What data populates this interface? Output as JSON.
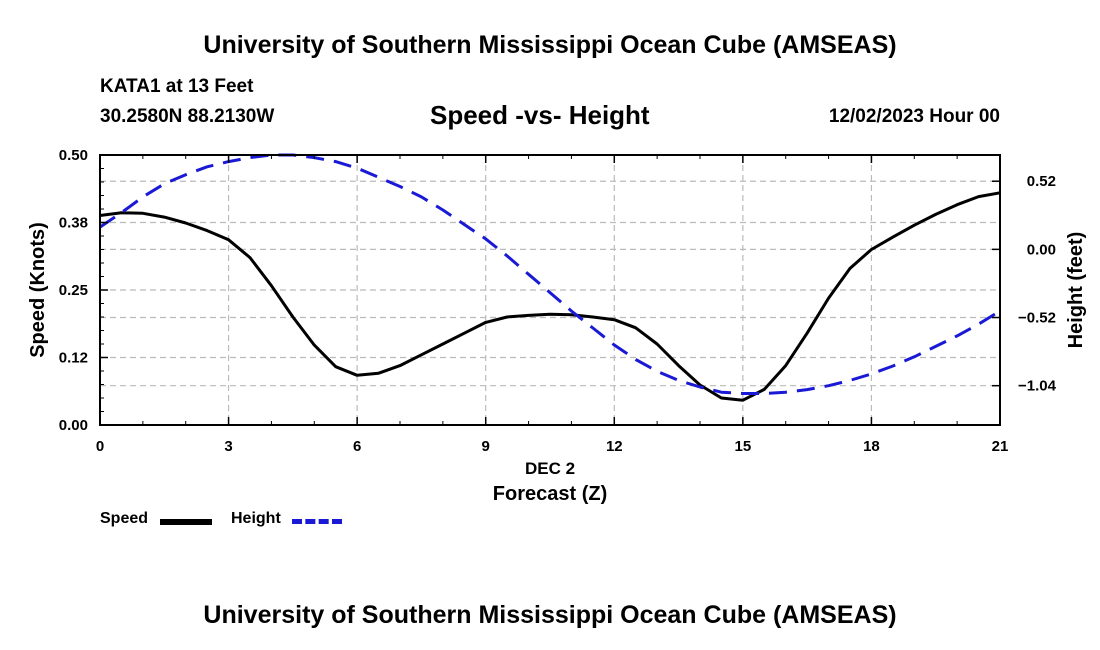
{
  "header": {
    "title": "University of Southern Mississippi Ocean Cube (AMSEAS)",
    "footer_title": "University of Southern Mississippi Ocean Cube (AMSEAS)",
    "station": "KATA1 at 13 Feet",
    "coords": "30.2580N  88.2130W",
    "datetime": "12/02/2023 Hour 00"
  },
  "legend": {
    "speed_label": "Speed",
    "height_label": "Height"
  },
  "colors": {
    "speed": "#000000",
    "height": "#1a1ad6",
    "grid": "#bbbbbb"
  },
  "chart_data": {
    "type": "line",
    "title": "Speed -vs- Height",
    "xlabel": "Forecast (Z)",
    "xsublabel": "DEC 2",
    "ylabel": "Speed (Knots)",
    "y2label": "Height (feet)",
    "xlim": [
      0,
      21
    ],
    "ylim": [
      0,
      0.5
    ],
    "y2lim": [
      -1.34,
      0.72
    ],
    "xticks": [
      0,
      3,
      6,
      9,
      12,
      15,
      18,
      21
    ],
    "xtick_labels": [
      "0",
      "3",
      "6",
      "9",
      "12",
      "15",
      "18",
      "21"
    ],
    "yticks": [
      0,
      0.125,
      0.25,
      0.375,
      0.5
    ],
    "ytick_labels": [
      "0.00",
      "0.12",
      "0.25",
      "0.38",
      "0.50"
    ],
    "y2ticks": [
      -1.04,
      -0.52,
      0,
      0.52
    ],
    "y2tick_labels": [
      "−1.04",
      "−0.52",
      "0.00",
      "0.52"
    ],
    "series": [
      {
        "name": "Speed",
        "axis": "left",
        "style": "solid",
        "x": [
          0,
          0.5,
          1,
          1.5,
          2,
          2.5,
          3,
          3.5,
          4,
          4.5,
          5,
          5.5,
          6,
          6.5,
          7,
          7.5,
          8,
          8.5,
          9,
          9.5,
          10,
          10.5,
          11,
          11.5,
          12,
          12.5,
          13,
          13.5,
          14,
          14.5,
          15,
          15.5,
          16,
          16.5,
          17,
          17.5,
          18,
          18.5,
          19,
          19.5,
          20,
          20.5,
          21
        ],
        "values": [
          0.388,
          0.393,
          0.392,
          0.385,
          0.374,
          0.36,
          0.343,
          0.31,
          0.258,
          0.2,
          0.148,
          0.108,
          0.092,
          0.096,
          0.11,
          0.13,
          0.15,
          0.17,
          0.19,
          0.2,
          0.203,
          0.205,
          0.204,
          0.2,
          0.195,
          0.18,
          0.15,
          0.11,
          0.074,
          0.05,
          0.046,
          0.066,
          0.11,
          0.17,
          0.235,
          0.29,
          0.325,
          0.348,
          0.37,
          0.39,
          0.408,
          0.423,
          0.43
        ]
      },
      {
        "name": "Height",
        "axis": "right",
        "style": "dashed",
        "x": [
          0,
          0.5,
          1,
          1.5,
          2,
          2.5,
          3,
          3.5,
          4,
          4.5,
          5,
          5.5,
          6,
          6.5,
          7,
          7.5,
          8,
          8.5,
          9,
          9.5,
          10,
          10.5,
          11,
          11.5,
          12,
          12.5,
          13,
          13.5,
          14,
          14.5,
          15,
          15.5,
          16,
          16.5,
          17,
          17.5,
          18,
          18.5,
          19,
          19.5,
          20,
          20.5,
          21
        ],
        "values": [
          0.17,
          0.28,
          0.4,
          0.5,
          0.57,
          0.63,
          0.67,
          0.7,
          0.72,
          0.72,
          0.7,
          0.67,
          0.62,
          0.55,
          0.48,
          0.4,
          0.3,
          0.19,
          0.08,
          -0.05,
          -0.19,
          -0.33,
          -0.47,
          -0.6,
          -0.73,
          -0.84,
          -0.93,
          -1.0,
          -1.05,
          -1.09,
          -1.1,
          -1.1,
          -1.09,
          -1.07,
          -1.04,
          -1.0,
          -0.95,
          -0.89,
          -0.82,
          -0.74,
          -0.66,
          -0.57,
          -0.47
        ]
      }
    ]
  }
}
